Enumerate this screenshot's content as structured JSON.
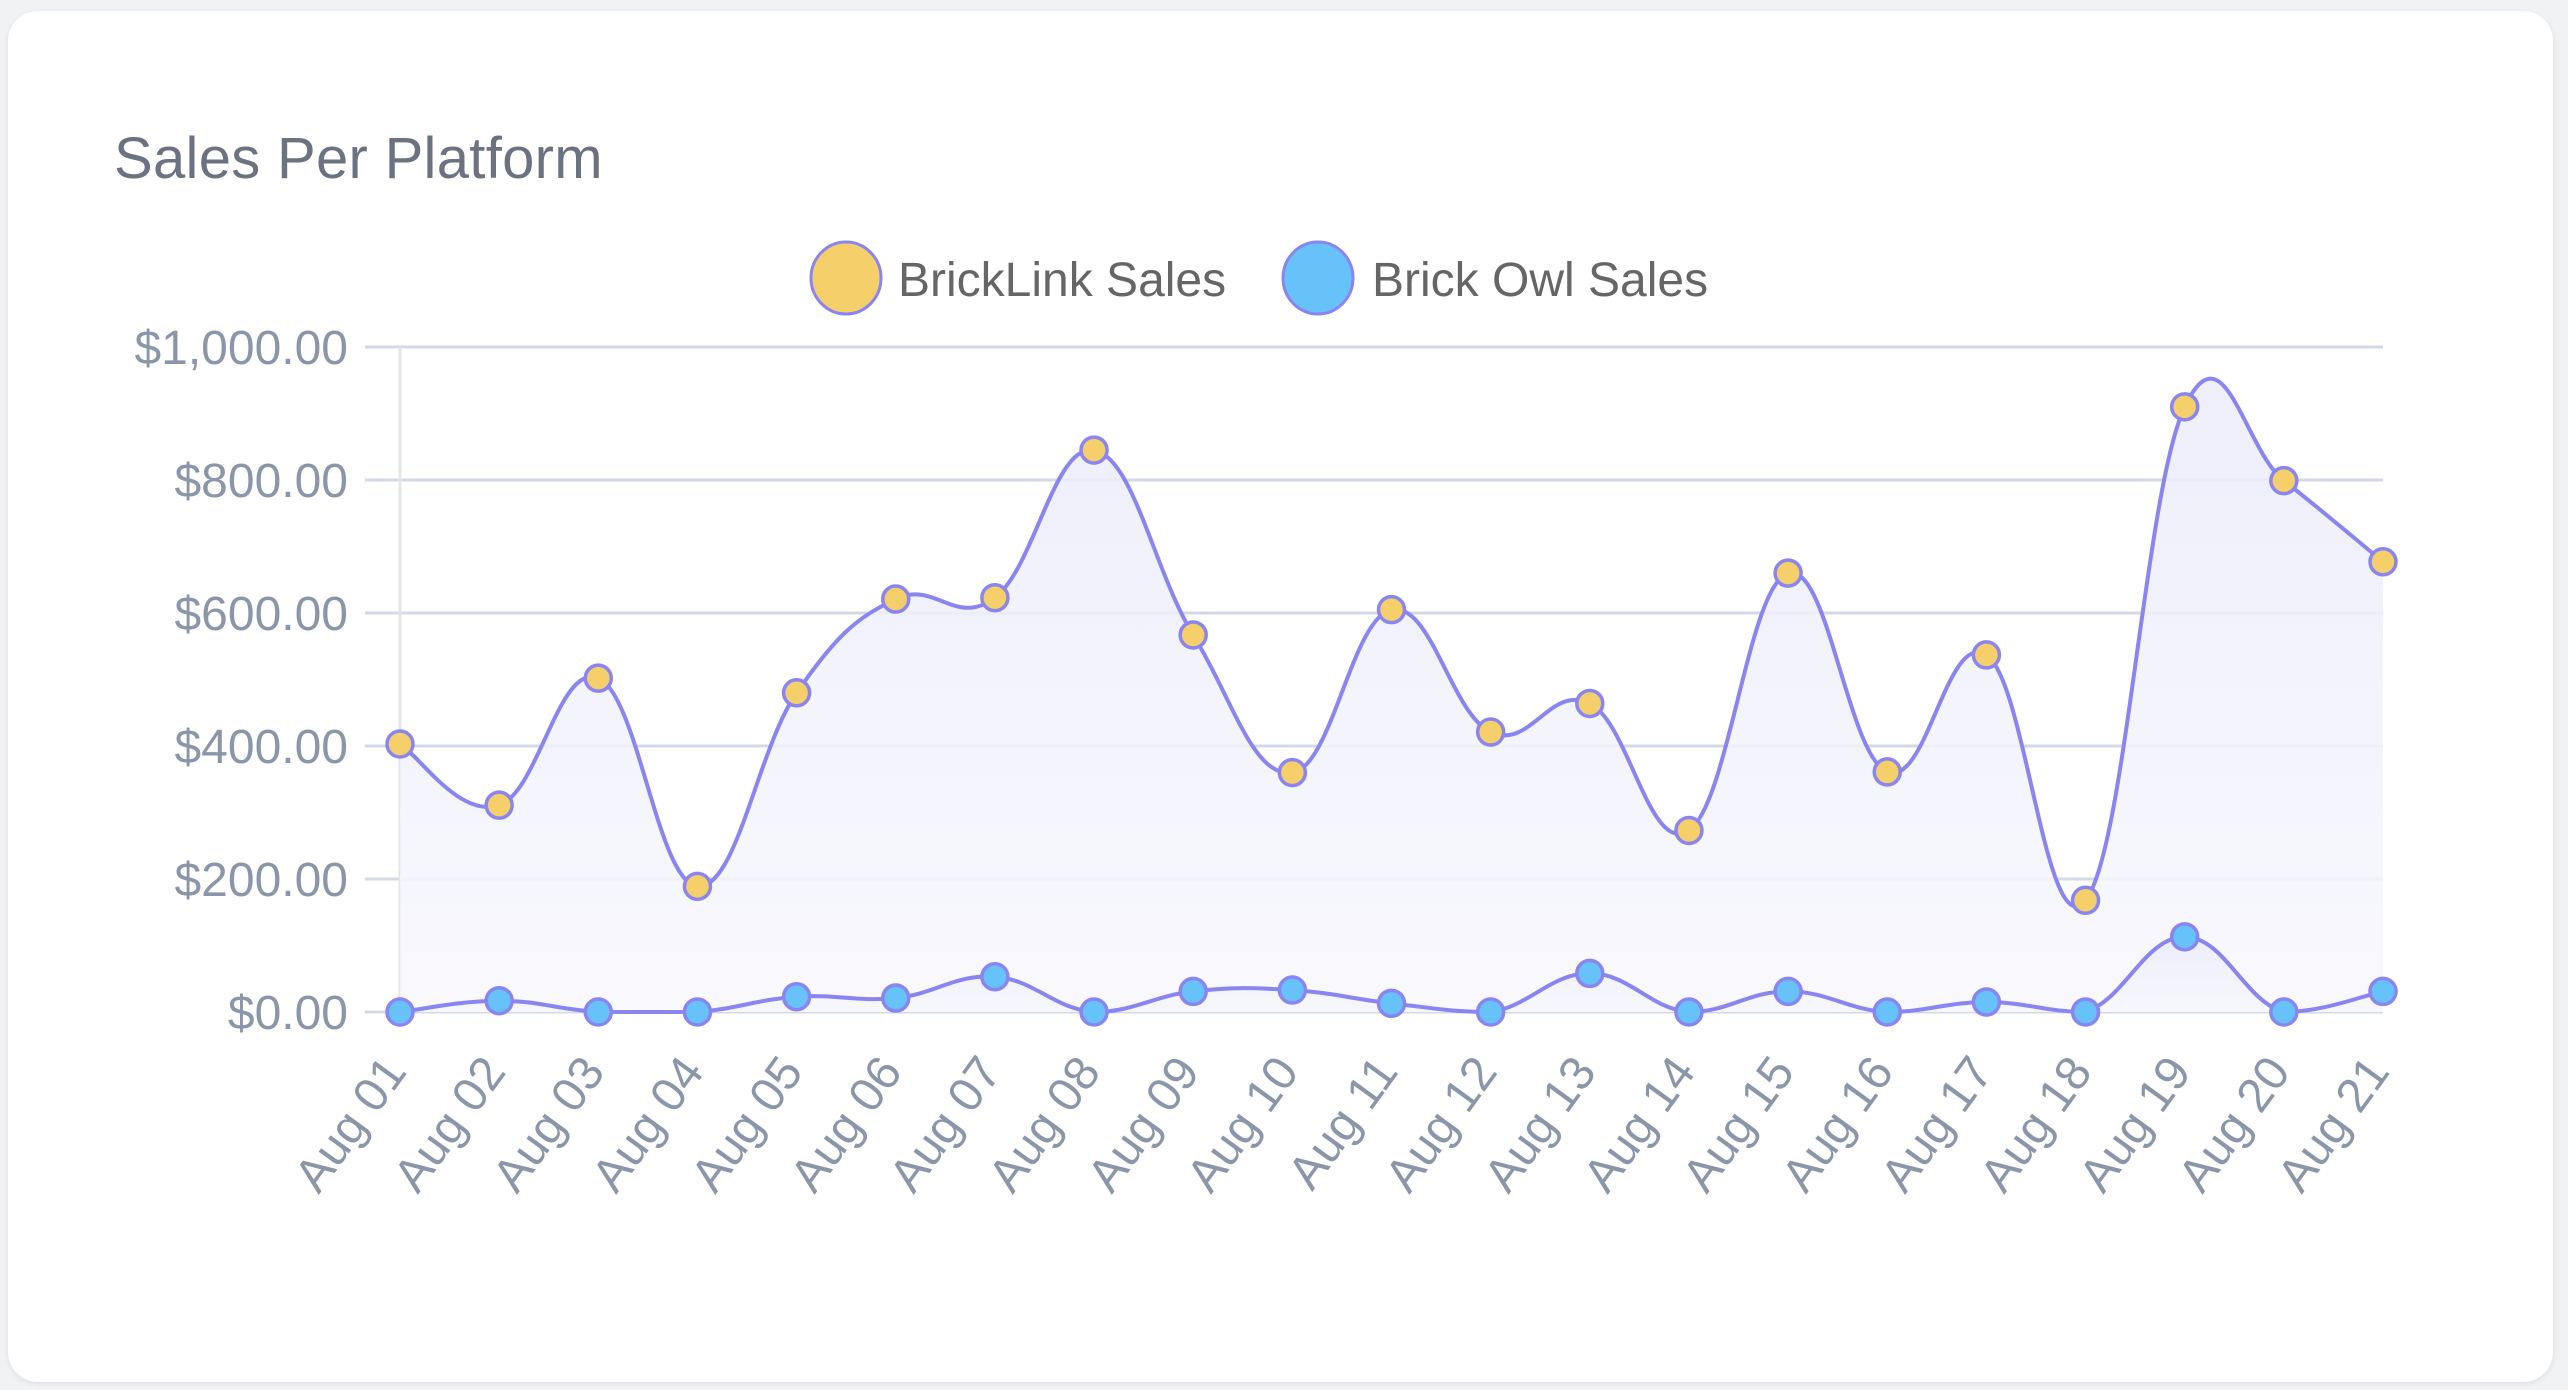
{
  "card": {
    "title": "Sales Per Platform"
  },
  "chart_data": {
    "type": "line",
    "title": "Sales Per Platform",
    "xlabel": "",
    "ylabel": "",
    "ylim": [
      0,
      1000
    ],
    "y_ticks": [
      0,
      200,
      400,
      600,
      800,
      1000
    ],
    "y_tick_labels": [
      "$0.00",
      "$200.00",
      "$400.00",
      "$600.00",
      "$800.00",
      "$1,000.00"
    ],
    "grid": true,
    "legend_position": "top-center",
    "fill": "origin",
    "smoothing": "monotone-curve",
    "categories": [
      "Aug 01",
      "Aug 02",
      "Aug 03",
      "Aug 04",
      "Aug 05",
      "Aug 06",
      "Aug 07",
      "Aug 08",
      "Aug 09",
      "Aug 10",
      "Aug 11",
      "Aug 12",
      "Aug 13",
      "Aug 14",
      "Aug 15",
      "Aug 16",
      "Aug 17",
      "Aug 18",
      "Aug 19",
      "Aug 20",
      "Aug 21"
    ],
    "series": [
      {
        "name": "BrickLink Sales",
        "point_color": "#f4cf6a",
        "border_color": "#8a85f0",
        "values": [
          403,
          311,
          502,
          189,
          480,
          621,
          623,
          845,
          567,
          360,
          605,
          421,
          464,
          273,
          660,
          361,
          537,
          168,
          910,
          799,
          677
        ]
      },
      {
        "name": "Brick Owl Sales",
        "point_color": "#66c2f8",
        "border_color": "#8a85f0",
        "values": [
          0,
          17,
          0,
          0,
          23,
          21,
          53,
          0,
          31,
          33,
          13,
          0,
          58,
          0,
          31,
          0,
          15,
          0,
          113,
          0,
          31
        ]
      }
    ]
  },
  "colors": {
    "line": "#8a85f0",
    "area_fill": "#eeeefb",
    "grid": "#d3dae6",
    "axis": "#e3e5ea"
  }
}
